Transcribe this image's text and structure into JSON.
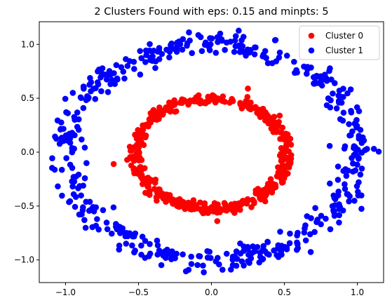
{
  "chart_data": {
    "type": "scatter",
    "title": "2 Clusters Found with eps: 0.15 and minpts: 5",
    "xlabel": "",
    "ylabel": "",
    "xlim": [
      -1.18,
      1.18
    ],
    "ylim": [
      -1.21,
      1.21
    ],
    "xticks": [
      -1.0,
      -0.5,
      0.0,
      0.5,
      1.0
    ],
    "xtick_labels": [
      "−1.0",
      "−0.5",
      "0.0",
      "0.5",
      "1.0"
    ],
    "yticks": [
      -1.0,
      -0.5,
      0.0,
      0.5,
      1.0
    ],
    "ytick_labels": [
      "−1.0",
      "−0.5",
      "0.0",
      "0.5",
      "1.0"
    ],
    "grid": false,
    "legend_position": "top-right",
    "series": [
      {
        "name": "Cluster 0",
        "color": "#ff0000",
        "shape": "ring",
        "center": [
          0.0,
          -0.02
        ],
        "radius_x": 0.52,
        "radius_y": 0.51,
        "band_width": 0.12,
        "points": 500,
        "x": [
          -0.67,
          0.25,
          0.04
        ],
        "y": [
          -0.11,
          0.59,
          -0.64
        ]
      },
      {
        "name": "Cluster 1",
        "color": "#0000ff",
        "shape": "ring",
        "center": [
          0.0,
          0.0
        ],
        "radius_x": 1.0,
        "radius_y": 1.0,
        "band_width": 0.14,
        "points": 500,
        "x": [
          -0.95,
          0.06,
          0.22
        ],
        "y": [
          0.55,
          1.1,
          1.07
        ]
      }
    ]
  }
}
